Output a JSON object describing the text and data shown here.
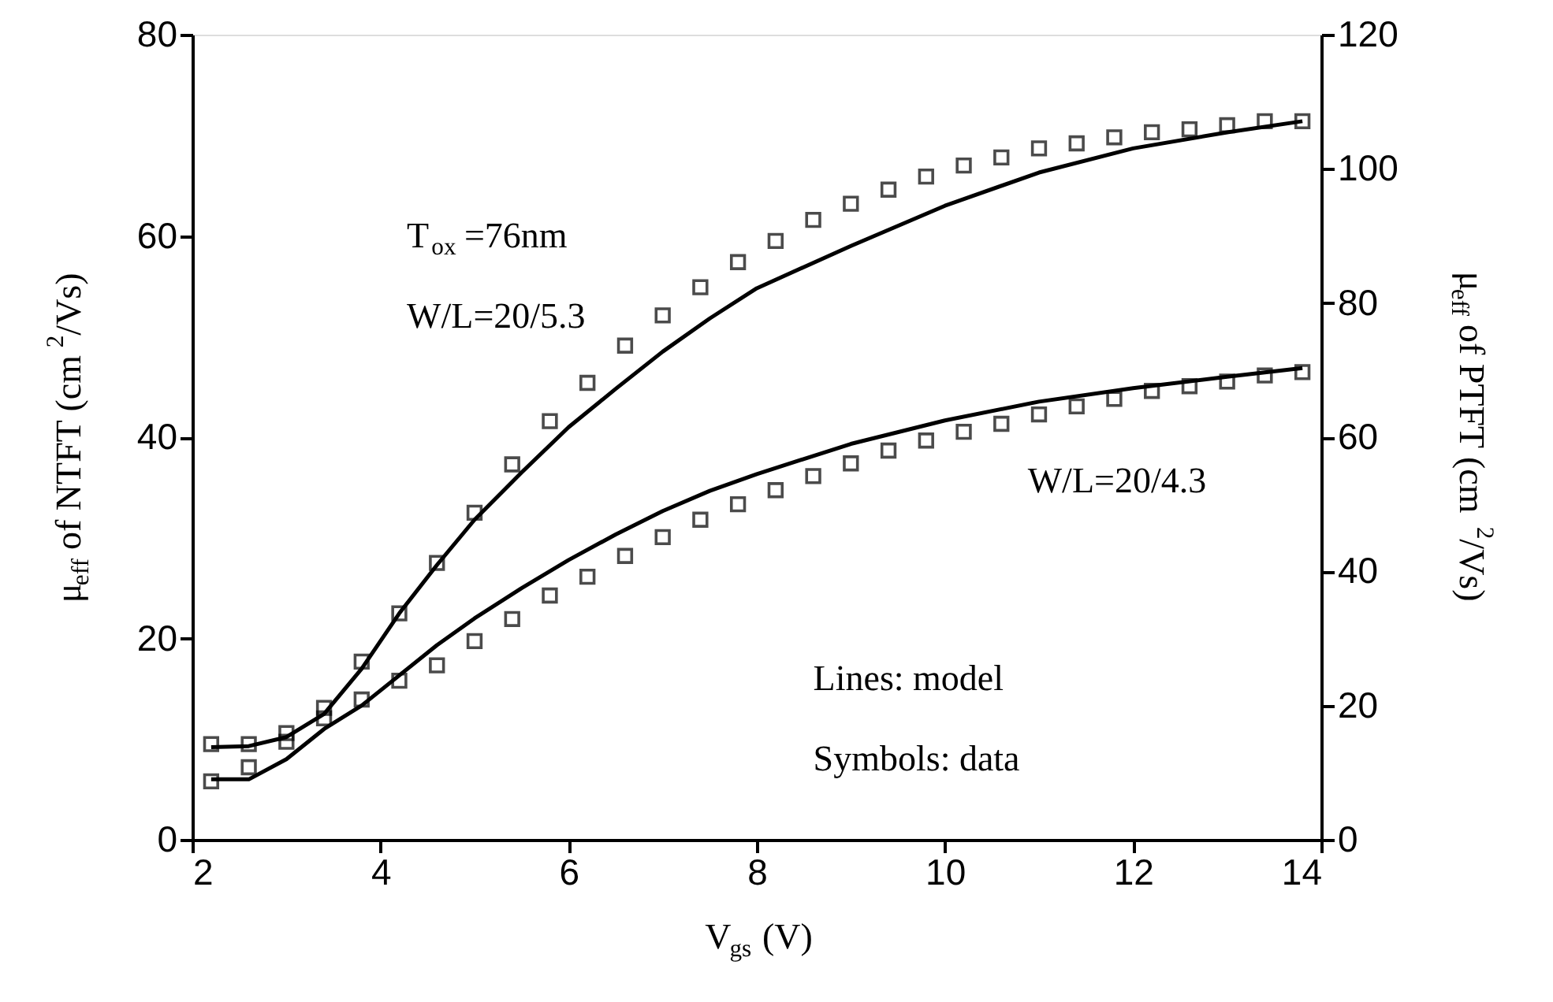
{
  "chart_data": {
    "type": "scatter",
    "xlabel": "V$_{gs}$ (V)",
    "ylabel": "μ$_{eff}$ of NTFT (cm$^{2}$/Vs)",
    "y2label": "μ$_{eff}$of PTFT (cm $^{2}$/Vs)",
    "xlim": [
      2,
      14
    ],
    "xticks": [
      2,
      4,
      6,
      8,
      10,
      12,
      14
    ],
    "ylim": [
      0,
      80
    ],
    "yticks": [
      0,
      20,
      40,
      60,
      80
    ],
    "y2lim": [
      0,
      120
    ],
    "y2ticks": [
      0,
      20,
      40,
      60,
      80,
      100,
      120
    ],
    "grid": false,
    "series": [
      {
        "marker": "square",
        "color": "#000000",
        "x": [
          2.2,
          2.6,
          3.0,
          3.4,
          3.8,
          4.2,
          4.6,
          5.0,
          5.4,
          5.8,
          6.2,
          6.6,
          7.0,
          7.4,
          7.8,
          8.2,
          8.6,
          9.0,
          9.4,
          9.8,
          10.2,
          10.6,
          11.0,
          11.4,
          11.8,
          12.2,
          12.6,
          13.0,
          13.4,
          13.8
        ],
        "values": [
          9.5,
          9.5,
          10.6,
          13.1,
          17.7,
          22.5,
          27.5,
          32.5,
          37.3,
          41.6,
          45.4,
          49.1,
          52.1,
          54.9,
          57.4,
          59.5,
          61.6,
          63.2,
          64.6,
          65.9,
          67.0,
          67.8,
          68.7,
          69.2,
          69.8,
          70.3,
          70.6,
          71.0,
          71.4,
          71.4
        ]
      },
      {
        "type": "line",
        "line_style": "solid",
        "color": "#000000",
        "x": [
          2.2,
          2.6,
          3.0,
          3.4,
          3.8,
          4.2,
          4.6,
          5.0,
          5.5,
          6.0,
          6.5,
          7.0,
          7.5,
          8.0,
          9.0,
          10.0,
          11.0,
          12.0,
          13.0,
          13.8
        ],
        "values": [
          9.2,
          9.3,
          10.2,
          12.5,
          17.0,
          22.5,
          27.3,
          31.8,
          36.5,
          41.0,
          44.8,
          48.5,
          51.8,
          54.8,
          59.0,
          63.0,
          66.3,
          68.7,
          70.3,
          71.4
        ]
      },
      {
        "axis": "y2",
        "marker": "square",
        "color": "#000000",
        "x": [
          2.2,
          2.6,
          3.0,
          3.4,
          3.8,
          4.2,
          4.6,
          5.0,
          5.4,
          5.8,
          6.2,
          6.6,
          7.0,
          7.4,
          7.8,
          8.2,
          8.6,
          9.0,
          9.4,
          9.8,
          10.2,
          10.6,
          11.0,
          11.4,
          11.8,
          12.2,
          12.6,
          13.0,
          13.4,
          13.8
        ],
        "values": [
          8.7,
          10.8,
          14.6,
          18.1,
          20.9,
          23.7,
          26.0,
          29.6,
          32.9,
          36.4,
          39.2,
          42.3,
          45.1,
          47.7,
          50.0,
          52.1,
          54.2,
          56.1,
          58.0,
          59.5,
          60.8,
          62.0,
          63.4,
          64.6,
          65.7,
          66.9,
          67.6,
          68.3,
          69.2,
          69.7
        ]
      },
      {
        "type": "line",
        "axis": "y2",
        "line_style": "solid",
        "color": "#000000",
        "x": [
          2.2,
          2.6,
          3.0,
          3.4,
          3.8,
          4.2,
          4.6,
          5.0,
          5.5,
          6.0,
          6.5,
          7.0,
          7.5,
          8.0,
          9.0,
          10.0,
          11.0,
          12.0,
          13.0,
          13.8
        ],
        "values": [
          9.0,
          9.0,
          12.0,
          16.5,
          20.0,
          24.5,
          29.0,
          33.0,
          37.5,
          41.7,
          45.5,
          49.0,
          52.0,
          54.5,
          59.0,
          62.5,
          65.3,
          67.3,
          69.0,
          70.3
        ]
      }
    ],
    "annotations": [
      "T$_{ox}$ =76nm",
      "W/L=20/5.3",
      "W/L=20/4.3",
      "Lines: model",
      "Symbols: data"
    ]
  }
}
